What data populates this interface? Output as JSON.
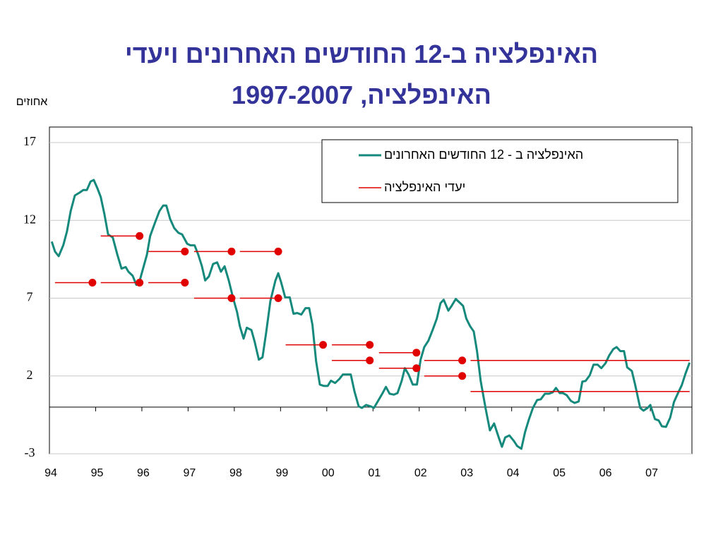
{
  "chart_data": {
    "type": "line",
    "title": "האינפלציה ב-12 החודשים האחרונים ויעדי",
    "subtitle": "האינפלציה, 1997-2007",
    "y_label": "אחוזים",
    "xlim": [
      1994,
      2007.9
    ],
    "xticks": [
      {
        "value": 1994,
        "label": "94"
      },
      {
        "value": 1995,
        "label": "95"
      },
      {
        "value": 1996,
        "label": "96"
      },
      {
        "value": 1997,
        "label": "97"
      },
      {
        "value": 1998,
        "label": "98"
      },
      {
        "value": 1999,
        "label": "99"
      },
      {
        "value": 2000,
        "label": "00"
      },
      {
        "value": 2001,
        "label": "01"
      },
      {
        "value": 2002,
        "label": "02"
      },
      {
        "value": 2003,
        "label": "03"
      },
      {
        "value": 2004,
        "label": "04"
      },
      {
        "value": 2005,
        "label": "05"
      },
      {
        "value": 2006,
        "label": "06"
      },
      {
        "value": 2007,
        "label": "07"
      }
    ],
    "ylim": [
      -3,
      18
    ],
    "yticks": [
      -3,
      2,
      7,
      12,
      17
    ],
    "grid": true,
    "legend": "upper right",
    "series": [
      {
        "name": "האינפלציה ב - 12 החודשים האחרונים",
        "color": "#15897c",
        "x": [
          1994.05,
          1994.12,
          1994.2,
          1994.3,
          1994.38,
          1994.46,
          1994.55,
          1994.66,
          1994.73,
          1994.81,
          1994.89,
          1994.96,
          1995.04,
          1995.11,
          1995.19,
          1995.27,
          1995.37,
          1995.47,
          1995.56,
          1995.65,
          1995.71,
          1995.8,
          1995.88,
          1995.95,
          1996.03,
          1996.11,
          1996.18,
          1996.29,
          1996.38,
          1996.46,
          1996.53,
          1996.61,
          1996.7,
          1996.79,
          1996.87,
          1996.98,
          1997.05,
          1997.14,
          1997.22,
          1997.3,
          1997.37,
          1997.45,
          1997.54,
          1997.63,
          1997.71,
          1997.79,
          1997.88,
          1997.97,
          1998.06,
          1998.12,
          1998.2,
          1998.27,
          1998.37,
          1998.44,
          1998.53,
          1998.61,
          1998.69,
          1998.78,
          1998.89,
          1998.95,
          1999.01,
          1999.1,
          1999.2,
          1999.28,
          1999.36,
          1999.45,
          1999.54,
          1999.62,
          1999.69,
          1999.77,
          1999.85,
          1999.94,
          2000.02,
          2000.09,
          2000.18,
          2000.27,
          2000.35,
          2000.44,
          2000.52,
          2000.6,
          2000.69,
          2000.76,
          2000.85,
          2000.95,
          2001.02,
          2001.11,
          2001.2,
          2001.28,
          2001.36,
          2001.45,
          2001.53,
          2001.62,
          2001.69,
          2001.77,
          2001.86,
          2001.95,
          2002.03,
          2002.11,
          2002.2,
          2002.29,
          2002.38,
          2002.46,
          2002.53,
          2002.63,
          2002.7,
          2002.79,
          2002.87,
          2002.95,
          2003.02,
          2003.1,
          2003.18,
          2003.25,
          2003.33,
          2003.44,
          2003.53,
          2003.62,
          2003.71,
          2003.79,
          2003.86,
          2003.95,
          2004.05,
          2004.12,
          2004.21,
          2004.29,
          2004.37,
          2004.46,
          2004.55,
          2004.63,
          2004.72,
          2004.81,
          2004.89,
          2004.96,
          2005.04,
          2005.11,
          2005.19,
          2005.28,
          2005.36,
          2005.45,
          2005.53,
          2005.6,
          2005.69,
          2005.77,
          2005.86,
          2005.94,
          2006.03,
          2006.11,
          2006.2,
          2006.27,
          2006.35,
          2006.43,
          2006.5,
          2006.6,
          2006.67,
          2006.78,
          2006.85,
          2006.94,
          2007.0,
          2007.1,
          2007.18,
          2007.25,
          2007.34,
          2007.43,
          2007.51,
          2007.6,
          2007.68,
          2007.76,
          2007.85
        ],
        "values": [
          10.64,
          10.0,
          9.7,
          10.4,
          11.3,
          12.6,
          13.6,
          13.8,
          13.95,
          13.95,
          14.5,
          14.6,
          14.05,
          13.5,
          12.4,
          11.1,
          10.9,
          9.8,
          8.9,
          9.0,
          8.7,
          8.45,
          7.86,
          8.1,
          8.95,
          9.8,
          11.0,
          11.9,
          12.6,
          12.95,
          12.95,
          12.1,
          11.5,
          11.2,
          11.1,
          10.5,
          10.4,
          10.4,
          9.8,
          9.05,
          8.14,
          8.4,
          9.2,
          9.3,
          8.7,
          9.05,
          8.14,
          7.05,
          6.1,
          5.2,
          4.4,
          5.1,
          4.95,
          4.2,
          3.05,
          3.2,
          4.8,
          6.8,
          8.14,
          8.6,
          8.05,
          7.05,
          7.05,
          6.0,
          6.05,
          5.95,
          6.36,
          6.36,
          5.3,
          2.95,
          1.45,
          1.36,
          1.36,
          1.7,
          1.55,
          1.8,
          2.1,
          2.1,
          2.1,
          1.0,
          0.05,
          -0.05,
          0.14,
          0.05,
          -0.05,
          0.4,
          0.86,
          1.3,
          0.86,
          0.8,
          0.9,
          1.68,
          2.5,
          2.1,
          1.45,
          1.45,
          3.05,
          3.86,
          4.27,
          4.95,
          5.68,
          6.68,
          6.9,
          6.2,
          6.5,
          6.95,
          6.73,
          6.5,
          5.68,
          5.2,
          4.86,
          3.6,
          1.68,
          -0.14,
          -1.5,
          -1.05,
          -1.86,
          -2.55,
          -1.95,
          -1.82,
          -2.18,
          -2.5,
          -2.68,
          -1.6,
          -0.82,
          -0.05,
          0.45,
          0.5,
          0.86,
          0.86,
          0.95,
          1.23,
          0.9,
          0.9,
          0.77,
          0.4,
          0.27,
          0.36,
          1.64,
          1.68,
          2.05,
          2.73,
          2.73,
          2.5,
          2.82,
          3.32,
          3.73,
          3.86,
          3.6,
          3.6,
          2.55,
          2.32,
          1.45,
          -0.05,
          -0.23,
          -0.05,
          0.14,
          -0.77,
          -0.86,
          -1.23,
          -1.27,
          -0.68,
          0.32,
          0.91,
          1.41,
          2.14,
          2.86
        ]
      },
      {
        "name": "יעדי האינפלציה",
        "color": "#e00000",
        "segments": [
          {
            "x": [
              1994.12,
              1994.93
            ],
            "value": 8
          },
          {
            "x": [
              1995.11,
              1995.95
            ],
            "value": 11
          },
          {
            "x": [
              1995.11,
              1995.95
            ],
            "value": 8
          },
          {
            "x": [
              1996.14,
              1996.93
            ],
            "value": 10
          },
          {
            "x": [
              1996.14,
              1996.93
            ],
            "value": 8
          },
          {
            "x": [
              1997.13,
              1997.94
            ],
            "value": 10
          },
          {
            "x": [
              1997.13,
              1997.94
            ],
            "value": 7
          },
          {
            "x": [
              1998.12,
              1998.95
            ],
            "value": 10
          },
          {
            "x": [
              1998.12,
              1998.95
            ],
            "value": 7
          },
          {
            "x": [
              1999.11,
              1999.92
            ],
            "value": 4
          },
          {
            "x": [
              2000.11,
              2000.93
            ],
            "value": 4
          },
          {
            "x": [
              2000.11,
              2000.93
            ],
            "value": 3
          },
          {
            "x": [
              2001.13,
              2001.94
            ],
            "value": 3.5
          },
          {
            "x": [
              2001.13,
              2001.94
            ],
            "value": 2.5
          },
          {
            "x": [
              2002.11,
              2002.93
            ],
            "value": 3
          },
          {
            "x": [
              2002.11,
              2002.93
            ],
            "value": 2
          },
          {
            "x": [
              2003.11,
              2007.85
            ],
            "value": 3
          },
          {
            "x": [
              2003.11,
              2007.85
            ],
            "value": 1
          }
        ]
      }
    ]
  }
}
